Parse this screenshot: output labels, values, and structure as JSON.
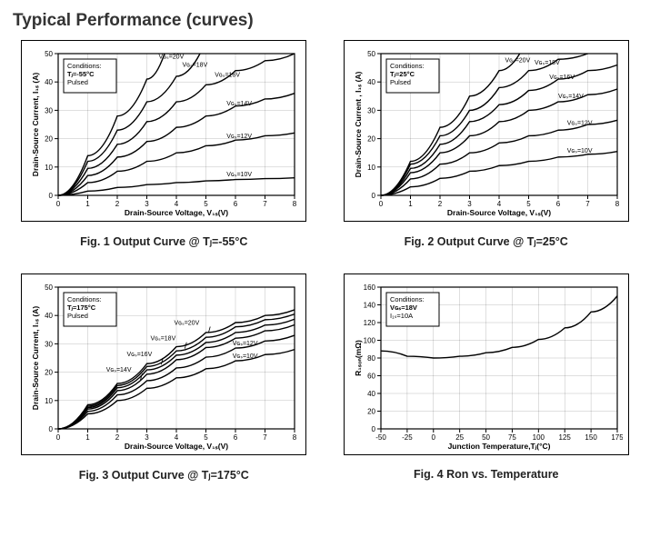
{
  "page_title": "Typical Performance (curves)",
  "charts": [
    {
      "id": "fig1",
      "caption": "Fig. 1 Output Curve @ Tⱼ=-55°C",
      "type": "line",
      "xlabel": "Drain-Source Voltage, V₁ₛ(V)",
      "ylabel": "Drain-Source Current, I₁ₛ (A)",
      "label_fontsize": 8.5,
      "background_color": "#ffffff",
      "series_color": "#000000",
      "line_width": 1.4,
      "xlim": [
        0,
        8
      ],
      "xtick_step": 1,
      "ylim": [
        0,
        50
      ],
      "ytick_step": 10,
      "grid_color": "#888888",
      "conditions": [
        "Conditions:",
        "Tⱼ=-55°C",
        "Pulsed"
      ],
      "series": [
        {
          "label": "V_GS=20V",
          "label_at": 3.4,
          "data": [
            [
              0,
              0
            ],
            [
              1,
              14
            ],
            [
              2,
              28
            ],
            [
              3,
              41
            ],
            [
              3.6,
              50
            ]
          ]
        },
        {
          "label": "V_GS=18V",
          "label_at": 4.2,
          "data": [
            [
              0,
              0
            ],
            [
              1,
              12
            ],
            [
              2,
              23
            ],
            [
              3,
              33
            ],
            [
              4,
              42
            ],
            [
              4.8,
              50
            ]
          ]
        },
        {
          "label": "V_GS=16V",
          "label_at": 5.3,
          "data": [
            [
              0,
              0
            ],
            [
              1,
              9.5
            ],
            [
              2,
              18
            ],
            [
              3,
              26
            ],
            [
              4,
              33
            ],
            [
              5,
              39
            ],
            [
              6,
              44
            ],
            [
              7,
              47.5
            ],
            [
              8,
              50
            ]
          ]
        },
        {
          "label": "V_GS=14V",
          "label_at": 5.7,
          "data": [
            [
              0,
              0
            ],
            [
              1,
              7
            ],
            [
              2,
              13.5
            ],
            [
              3,
              19
            ],
            [
              4,
              24
            ],
            [
              5,
              28
            ],
            [
              6,
              31.5
            ],
            [
              7,
              34
            ],
            [
              8,
              36
            ]
          ]
        },
        {
          "label": "V_GS=12V",
          "label_at": 5.7,
          "data": [
            [
              0,
              0
            ],
            [
              1,
              4.5
            ],
            [
              2,
              8.5
            ],
            [
              3,
              12
            ],
            [
              4,
              15
            ],
            [
              5,
              17.5
            ],
            [
              6,
              19.5
            ],
            [
              7,
              21
            ],
            [
              8,
              22
            ]
          ]
        },
        {
          "label": "V_GS=10V",
          "label_at": 5.7,
          "data": [
            [
              0,
              0
            ],
            [
              1,
              1.5
            ],
            [
              2,
              2.8
            ],
            [
              3,
              3.8
            ],
            [
              4,
              4.5
            ],
            [
              5,
              5.1
            ],
            [
              6,
              5.6
            ],
            [
              7,
              5.9
            ],
            [
              8,
              6.2
            ]
          ]
        }
      ]
    },
    {
      "id": "fig2",
      "caption": "Fig. 2 Output Curve @ Tⱼ=25°C",
      "type": "line",
      "xlabel": "Drain-Source Voltage, V₁ₛ(V)",
      "ylabel": "Drain-Source Current , I₁ₛ (A)",
      "label_fontsize": 8.5,
      "background_color": "#ffffff",
      "series_color": "#000000",
      "line_width": 1.4,
      "xlim": [
        0,
        8
      ],
      "xtick_step": 1,
      "ylim": [
        0,
        50
      ],
      "ytick_step": 10,
      "grid_color": "#888888",
      "conditions": [
        "Conditions:",
        "Tⱼ=25°C",
        "Pulsed"
      ],
      "series": [
        {
          "label": "V_GS=20V",
          "label_at": 4.2,
          "data": [
            [
              0,
              0
            ],
            [
              1,
              12
            ],
            [
              2,
              24
            ],
            [
              3,
              35
            ],
            [
              4,
              44
            ],
            [
              4.7,
              50
            ]
          ]
        },
        {
          "label": "V_GS=18V",
          "label_at": 5.2,
          "data": [
            [
              0,
              0
            ],
            [
              1,
              11
            ],
            [
              2,
              21
            ],
            [
              3,
              30
            ],
            [
              4,
              38
            ],
            [
              5,
              44
            ],
            [
              6,
              48
            ],
            [
              7,
              50
            ]
          ]
        },
        {
          "label": "V_GS=16V",
          "label_at": 5.7,
          "data": [
            [
              0,
              0
            ],
            [
              1,
              9.5
            ],
            [
              2,
              18
            ],
            [
              3,
              26
            ],
            [
              4,
              32
            ],
            [
              5,
              37
            ],
            [
              6,
              41
            ],
            [
              7,
              44
            ],
            [
              8,
              46
            ]
          ]
        },
        {
          "label": "V_GS=14V",
          "label_at": 6.0,
          "data": [
            [
              0,
              0
            ],
            [
              1,
              8
            ],
            [
              2,
              15
            ],
            [
              3,
              21
            ],
            [
              4,
              26
            ],
            [
              5,
              30
            ],
            [
              6,
              33
            ],
            [
              7,
              35.5
            ],
            [
              8,
              37.5
            ]
          ]
        },
        {
          "label": "V_GS=12V",
          "label_at": 6.3,
          "data": [
            [
              0,
              0
            ],
            [
              1,
              5.8
            ],
            [
              2,
              11
            ],
            [
              3,
              15
            ],
            [
              4,
              18.5
            ],
            [
              5,
              21
            ],
            [
              6,
              23
            ],
            [
              7,
              25
            ],
            [
              8,
              26.5
            ]
          ]
        },
        {
          "label": "V_GS=10V",
          "label_at": 6.3,
          "data": [
            [
              0,
              0
            ],
            [
              1,
              3
            ],
            [
              2,
              6
            ],
            [
              3,
              8.5
            ],
            [
              4,
              10.5
            ],
            [
              5,
              12
            ],
            [
              6,
              13.5
            ],
            [
              7,
              14.5
            ],
            [
              8,
              15.5
            ]
          ]
        }
      ]
    },
    {
      "id": "fig3",
      "caption": "Fig. 3 Output Curve @ Tⱼ=175°C",
      "type": "line",
      "xlabel": "Drain-Source Voltage, V₁ₛ(V)",
      "ylabel": "Drain-Source Current, I₁ₛ (A)",
      "label_fontsize": 8.5,
      "background_color": "#ffffff",
      "series_color": "#000000",
      "line_width": 1.4,
      "xlim": [
        0,
        8
      ],
      "xtick_step": 1,
      "ylim": [
        0,
        50
      ],
      "ytick_step": 10,
      "grid_color": "#888888",
      "conditions": [
        "Conditions:",
        "Tⱼ=175°C",
        "Pulsed"
      ],
      "series": [
        {
          "label": "V_GS=20V",
          "label_at": 4.9,
          "arrow": true,
          "data": [
            [
              0,
              0
            ],
            [
              1,
              8.5
            ],
            [
              2,
              16
            ],
            [
              3,
              23
            ],
            [
              4,
              29
            ],
            [
              5,
              34
            ],
            [
              6,
              37.5
            ],
            [
              7,
              40
            ],
            [
              8,
              42
            ]
          ]
        },
        {
          "label": "V_GS=18V",
          "label_at": 4.1,
          "arrow": true,
          "data": [
            [
              0,
              0
            ],
            [
              1,
              8
            ],
            [
              2,
              15.3
            ],
            [
              3,
              22
            ],
            [
              4,
              27.5
            ],
            [
              5,
              32.3
            ],
            [
              6,
              36
            ],
            [
              7,
              38.5
            ],
            [
              8,
              40.5
            ]
          ]
        },
        {
          "label": "V_GS=16V",
          "label_at": 3.3,
          "arrow": true,
          "data": [
            [
              0,
              0
            ],
            [
              1,
              7.5
            ],
            [
              2,
              14.5
            ],
            [
              3,
              20.8
            ],
            [
              4,
              26
            ],
            [
              5,
              30.5
            ],
            [
              6,
              34
            ],
            [
              7,
              36.6
            ],
            [
              8,
              38.7
            ]
          ]
        },
        {
          "label": "V_GS=14V",
          "label_at": 2.6,
          "arrow": true,
          "data": [
            [
              0,
              0
            ],
            [
              1,
              7
            ],
            [
              2,
              13.5
            ],
            [
              3,
              19.3
            ],
            [
              4,
              24.4
            ],
            [
              5,
              28.7
            ],
            [
              6,
              32
            ],
            [
              7,
              34.6
            ],
            [
              8,
              36.7
            ]
          ]
        },
        {
          "label": "V_GS=12V",
          "label_at": 5.9,
          "data": [
            [
              0,
              0
            ],
            [
              1,
              6.2
            ],
            [
              2,
              12
            ],
            [
              3,
              17
            ],
            [
              4,
              21.5
            ],
            [
              5,
              25.3
            ],
            [
              6,
              28.5
            ],
            [
              7,
              31
            ],
            [
              8,
              33
            ]
          ]
        },
        {
          "label": "V_GS=10V",
          "label_at": 5.9,
          "data": [
            [
              0,
              0
            ],
            [
              1,
              5.3
            ],
            [
              2,
              10
            ],
            [
              3,
              14.3
            ],
            [
              4,
              18
            ],
            [
              5,
              21.2
            ],
            [
              6,
              24
            ],
            [
              7,
              26.2
            ],
            [
              8,
              28
            ]
          ]
        }
      ]
    },
    {
      "id": "fig4",
      "caption": "Fig. 4 Ron vs. Temperature",
      "type": "line",
      "xlabel": "Junction Temperature,Tⱼ(°C)",
      "ylabel": "R₁ₛₒₙ(mΩ)",
      "label_fontsize": 8.5,
      "background_color": "#ffffff",
      "series_color": "#000000",
      "line_width": 1.4,
      "xlim": [
        -50,
        175
      ],
      "xtick_step": 25,
      "ylim": [
        0,
        160
      ],
      "ytick_step": 20,
      "grid_color": "#888888",
      "conditions": [
        "Conditions:",
        "V_GS=18V",
        "I_DS=10A"
      ],
      "series": [
        {
          "label": "",
          "data": [
            [
              -50,
              88
            ],
            [
              -25,
              82
            ],
            [
              0,
              80
            ],
            [
              25,
              82
            ],
            [
              50,
              86
            ],
            [
              75,
              92
            ],
            [
              100,
              101
            ],
            [
              125,
              114
            ],
            [
              150,
              132
            ],
            [
              175,
              150
            ]
          ]
        }
      ]
    }
  ]
}
